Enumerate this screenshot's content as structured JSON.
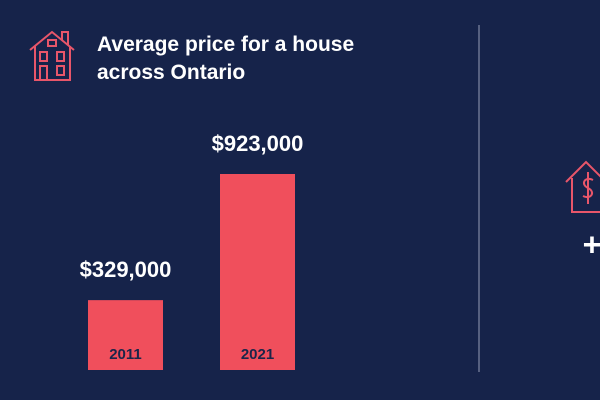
{
  "chart_data": {
    "type": "bar",
    "title": "Average price for a house across Ontario",
    "categories": [
      "2011",
      "2021"
    ],
    "values": [
      329000,
      923000
    ],
    "value_labels": [
      "$329,000",
      "$923,000"
    ],
    "color": "#f04f5c",
    "annotation": "+"
  }
}
